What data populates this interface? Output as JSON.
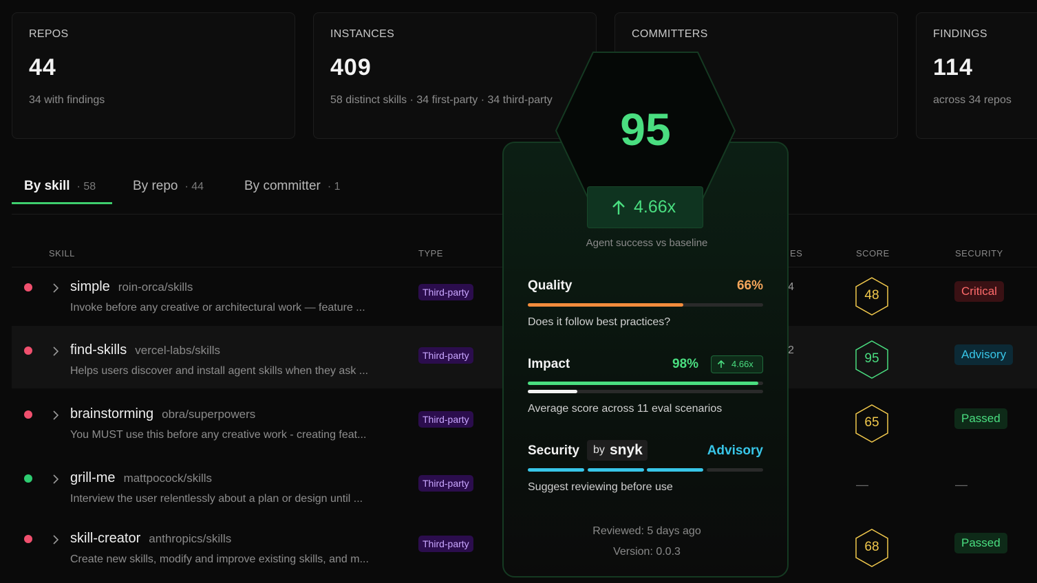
{
  "stats": [
    {
      "label": "REPOS",
      "value": 44,
      "note": "34 with findings"
    },
    {
      "label": "INSTANCES",
      "value": 409,
      "note": "58 distinct skills · 34 first-party · 34 third-party"
    },
    {
      "label": "COMMITTERS"
    },
    {
      "label": "FINDINGS",
      "value": 114,
      "note": "across 34 repos"
    }
  ],
  "tabs": [
    {
      "label": "By skill",
      "count": "· 58"
    },
    {
      "label": "By repo",
      "count": "· 44"
    },
    {
      "label": "By committer",
      "count": "· 1"
    }
  ],
  "table": {
    "headers": {
      "skill": "SKILL",
      "type": "TYPE",
      "instances": "ES",
      "score": "SCORE",
      "security": "SECURITY"
    },
    "rows": [
      {
        "status_color": "#f0506e",
        "name": "simple",
        "repo": "roin-orca/skills",
        "description": "Invoke before any creative or architectural work — feature ...",
        "type": "Third-party",
        "instances": "4",
        "score": 48,
        "score_color": "#f2c94c",
        "security": "Critical",
        "security_color": "#ff6b6b",
        "security_bg": "#3a1114"
      },
      {
        "status_color": "#f0506e",
        "name": "find-skills",
        "repo": "vercel-labs/skills",
        "description": "Helps users discover and install agent skills when they ask ...",
        "type": "Third-party",
        "instances": "2",
        "score": 95,
        "score_color": "#4ade80",
        "security": "Advisory",
        "security_color": "#38c6e8",
        "security_bg": "#0c2a36"
      },
      {
        "status_color": "#f0506e",
        "name": "brainstorming",
        "repo": "obra/superpowers",
        "description": "You MUST use this before any creative work - creating feat...",
        "type": "Third-party",
        "score": 65,
        "score_color": "#f2c94c",
        "security": "Passed",
        "security_color": "#4ade80",
        "security_bg": "#0e2a18"
      },
      {
        "status_color": "#2ecc71",
        "name": "grill-me",
        "repo": "mattpocock/skills",
        "description": "Interview the user relentlessly about a plan or design until ...",
        "type": "Third-party",
        "score": "—",
        "security": "—"
      },
      {
        "status_color": "#f0506e",
        "name": "skill-creator",
        "repo": "anthropics/skills",
        "description": "Create new skills, modify and improve existing skills, and m...",
        "type": "Third-party",
        "score": 68,
        "score_color": "#f2c94c",
        "security": "Passed",
        "security_color": "#4ade80",
        "security_bg": "#0e2a18"
      }
    ]
  },
  "popup": {
    "score": 95,
    "multiplier": 4.66,
    "multiplier_label": "4.66x",
    "caption": "Agent success vs baseline",
    "quality": {
      "title": "Quality",
      "value": 66,
      "value_label": "66%",
      "note": "Does it follow best practices?"
    },
    "impact": {
      "title": "Impact",
      "value": 98,
      "value_label": "98%",
      "note": "Average score across 11 eval scenarios"
    },
    "security": {
      "title": "Security",
      "by": "by",
      "vendor": "snyk",
      "status": "Advisory",
      "note": "Suggest reviewing before use"
    },
    "reviewed": "Reviewed: 5 days ago",
    "version": "Version: 0.0.3"
  }
}
